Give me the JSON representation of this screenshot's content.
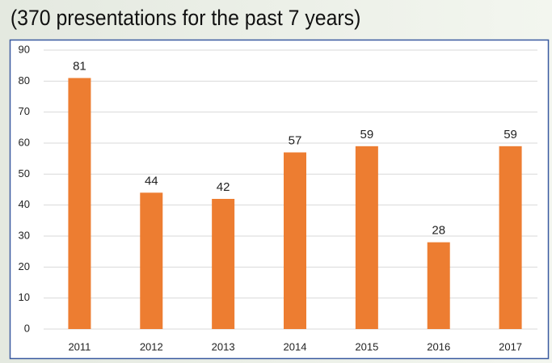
{
  "chart_data": {
    "type": "bar",
    "title": "(370 presentations for the past 7 years)",
    "categories": [
      "2011",
      "2012",
      "2013",
      "2014",
      "2015",
      "2016",
      "2017"
    ],
    "values": [
      81,
      44,
      42,
      57,
      59,
      28,
      59
    ],
    "color": "#ed7d31",
    "ylim": [
      0,
      90
    ],
    "yticks": [
      0,
      10,
      20,
      30,
      40,
      50,
      60,
      70,
      80,
      90
    ],
    "grid": true
  }
}
